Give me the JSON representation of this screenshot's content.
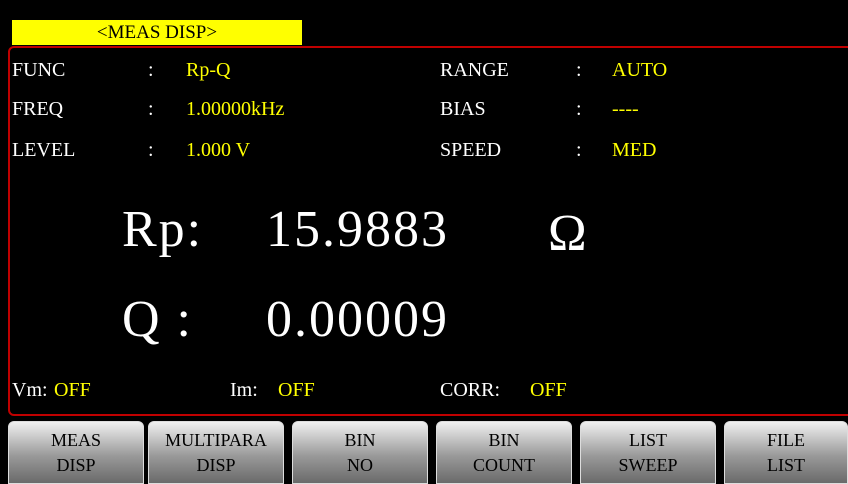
{
  "header": {
    "title": "<MEAS  DISP>"
  },
  "params": {
    "separator": ":",
    "left": [
      {
        "label": "FUNC",
        "value": "Rp-Q"
      },
      {
        "label": "FREQ",
        "value": "1.00000kHz"
      },
      {
        "label": "LEVEL",
        "value": "1.000 V"
      }
    ],
    "right": [
      {
        "label": "RANGE",
        "value": "AUTO"
      },
      {
        "label": "BIAS",
        "value": "----"
      },
      {
        "label": "SPEED",
        "value": "MED"
      }
    ]
  },
  "readings": [
    {
      "label": "Rp:",
      "value": "15.9883",
      "unit": "Ω"
    },
    {
      "label": "Q :",
      "value": "0.00009"
    }
  ],
  "status": [
    {
      "label": "Vm:",
      "value": "OFF"
    },
    {
      "label": "Im:",
      "value": "OFF"
    },
    {
      "label": "CORR:",
      "value": "OFF"
    }
  ],
  "softkeys": [
    [
      "MEAS",
      "DISP"
    ],
    [
      "MULTIPARA",
      "DISP"
    ],
    [
      "BIN",
      "NO"
    ],
    [
      "BIN",
      "COUNT"
    ],
    [
      "LIST",
      "SWEEP"
    ],
    [
      "FILE",
      "LIST"
    ]
  ]
}
